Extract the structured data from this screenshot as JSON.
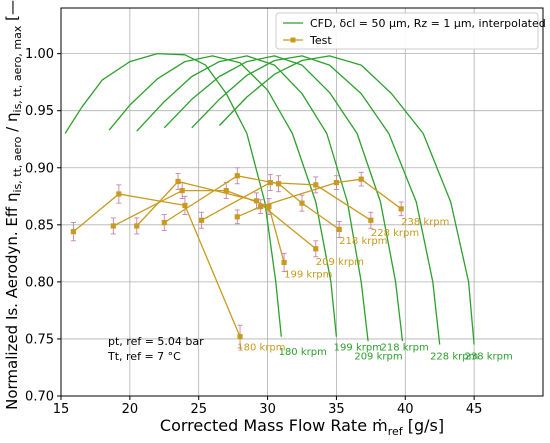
{
  "chart_data": {
    "type": "line",
    "xlabel": "Corrected Mass Flow Rate ṁref [g/s]",
    "ylabel": "Normalized Is. Aerodyn. Eff ηis, tt, aero / ηis, tt, aero, max [—]",
    "xlim": [
      15,
      50
    ],
    "ylim": [
      0.7,
      1.04
    ],
    "xticks": [
      "15",
      "20",
      "25",
      "30",
      "35",
      "40",
      "45"
    ],
    "yticks": [
      "0.70",
      "0.75",
      "0.80",
      "0.85",
      "0.90",
      "0.95",
      "1.00"
    ],
    "grid": true,
    "legend_position": "top-right",
    "legend": {
      "cfd_label": "CFD, δcl = 50 µm, Rz = 1 µm, interpolated",
      "test_label": "Test"
    },
    "colors": {
      "cfd": "#2ca02c",
      "test": "#c89a1e"
    },
    "annotation": {
      "line1": "pt, ref = 5.04 bar",
      "line2": "Tt, ref = 7 °C"
    },
    "cfd_series": [
      {
        "speed": "180 krpm",
        "label_at": [
          30.8,
          0.736
        ],
        "points": [
          [
            15.3,
            0.93
          ],
          [
            16.5,
            0.953
          ],
          [
            18.0,
            0.977
          ],
          [
            20.0,
            0.993
          ],
          [
            22.0,
            1.0
          ],
          [
            24.0,
            0.999
          ],
          [
            25.5,
            0.99
          ],
          [
            27.0,
            0.965
          ],
          [
            28.5,
            0.93
          ],
          [
            29.8,
            0.87
          ],
          [
            30.6,
            0.8
          ],
          [
            31.0,
            0.752
          ]
        ]
      },
      {
        "speed": "199 krpm",
        "label_at": [
          34.8,
          0.74
        ],
        "points": [
          [
            18.5,
            0.933
          ],
          [
            20.0,
            0.955
          ],
          [
            22.0,
            0.978
          ],
          [
            24.0,
            0.993
          ],
          [
            26.0,
            0.998
          ],
          [
            28.0,
            0.992
          ],
          [
            30.0,
            0.968
          ],
          [
            31.8,
            0.93
          ],
          [
            33.5,
            0.87
          ],
          [
            34.6,
            0.8
          ],
          [
            35.0,
            0.752
          ]
        ]
      },
      {
        "speed": "209 krpm",
        "label_at": [
          36.3,
          0.732
        ],
        "points": [
          [
            20.5,
            0.932
          ],
          [
            22.5,
            0.958
          ],
          [
            24.5,
            0.98
          ],
          [
            26.5,
            0.993
          ],
          [
            28.5,
            0.998
          ],
          [
            30.5,
            0.99
          ],
          [
            32.5,
            0.965
          ],
          [
            34.3,
            0.93
          ],
          [
            35.8,
            0.87
          ],
          [
            36.8,
            0.8
          ],
          [
            37.3,
            0.748
          ]
        ]
      },
      {
        "speed": "218 krpm",
        "label_at": [
          38.2,
          0.74
        ],
        "points": [
          [
            22.5,
            0.935
          ],
          [
            24.5,
            0.96
          ],
          [
            26.5,
            0.98
          ],
          [
            28.5,
            0.993
          ],
          [
            30.5,
            0.998
          ],
          [
            32.5,
            0.99
          ],
          [
            34.5,
            0.966
          ],
          [
            36.5,
            0.93
          ],
          [
            38.2,
            0.87
          ],
          [
            39.3,
            0.8
          ],
          [
            39.8,
            0.748
          ]
        ]
      },
      {
        "speed": "228 krpm",
        "label_at": [
          41.8,
          0.732
        ],
        "points": [
          [
            24.5,
            0.935
          ],
          [
            26.5,
            0.96
          ],
          [
            28.5,
            0.981
          ],
          [
            30.5,
            0.994
          ],
          [
            32.5,
            0.998
          ],
          [
            34.5,
            0.99
          ],
          [
            36.8,
            0.965
          ],
          [
            38.8,
            0.93
          ],
          [
            40.8,
            0.87
          ],
          [
            42.0,
            0.8
          ],
          [
            42.5,
            0.745
          ]
        ]
      },
      {
        "speed": "238 krpm",
        "label_at": [
          44.3,
          0.732
        ],
        "points": [
          [
            26.5,
            0.937
          ],
          [
            28.5,
            0.962
          ],
          [
            30.5,
            0.982
          ],
          [
            32.5,
            0.994
          ],
          [
            34.5,
            0.998
          ],
          [
            36.8,
            0.99
          ],
          [
            39.0,
            0.965
          ],
          [
            41.3,
            0.93
          ],
          [
            43.3,
            0.87
          ],
          [
            44.6,
            0.8
          ],
          [
            45.0,
            0.745
          ]
        ]
      }
    ],
    "test_series": [
      {
        "speed": "180 krpm",
        "label_at": [
          27.8,
          0.74
        ],
        "points": [
          [
            15.9,
            0.844
          ],
          [
            19.2,
            0.877
          ],
          [
            24.0,
            0.867
          ],
          [
            28.0,
            0.752
          ]
        ],
        "err": [
          0.008,
          0.008,
          0.008,
          0.01
        ]
      },
      {
        "speed": "199 krpm",
        "label_at": [
          31.2,
          0.804
        ],
        "points": [
          [
            18.8,
            0.849
          ],
          [
            23.8,
            0.88
          ],
          [
            27.0,
            0.88
          ],
          [
            30.1,
            0.866
          ],
          [
            31.2,
            0.817
          ]
        ],
        "err": [
          0.007,
          0.007,
          0.007,
          0.007,
          0.008
        ]
      },
      {
        "speed": "209 krpm",
        "label_at": [
          33.5,
          0.815
        ],
        "points": [
          [
            20.5,
            0.849
          ],
          [
            23.5,
            0.888
          ],
          [
            29.2,
            0.871
          ],
          [
            33.5,
            0.829
          ]
        ],
        "err": [
          0.007,
          0.007,
          0.007,
          0.007
        ]
      },
      {
        "speed": "218 krpm",
        "label_at": [
          35.2,
          0.833
        ],
        "points": [
          [
            22.5,
            0.852
          ],
          [
            27.8,
            0.893
          ],
          [
            30.8,
            0.886
          ],
          [
            32.5,
            0.869
          ],
          [
            35.2,
            0.846
          ]
        ],
        "err": [
          0.007,
          0.007,
          0.007,
          0.007,
          0.007
        ]
      },
      {
        "speed": "228 krpm",
        "label_at": [
          37.5,
          0.84
        ],
        "points": [
          [
            25.2,
            0.854
          ],
          [
            30.2,
            0.887
          ],
          [
            33.5,
            0.885
          ],
          [
            37.5,
            0.854
          ]
        ],
        "err": [
          0.007,
          0.007,
          0.007,
          0.007
        ]
      },
      {
        "speed": "238 krpm",
        "label_at": [
          39.7,
          0.85
        ],
        "points": [
          [
            27.8,
            0.857
          ],
          [
            29.5,
            0.866
          ],
          [
            35.0,
            0.887
          ],
          [
            36.8,
            0.89
          ],
          [
            39.7,
            0.864
          ]
        ],
        "err": [
          0.006,
          0.006,
          0.006,
          0.006,
          0.006
        ]
      }
    ]
  }
}
